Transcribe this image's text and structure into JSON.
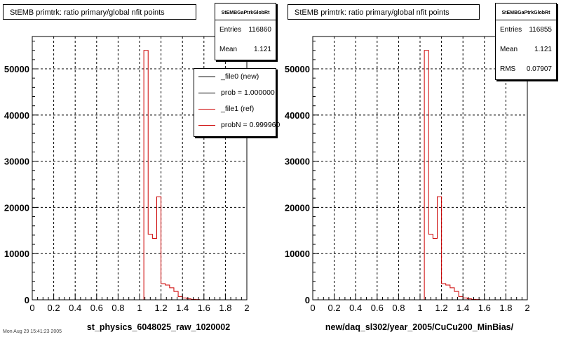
{
  "panels": [
    {
      "title": "StEMB primtrk: ratio primary/global nfit points",
      "stats": {
        "name": "StEMBGaPtrkGlobRt",
        "rows": [
          {
            "label": "Entries",
            "value": "116860"
          },
          {
            "label": "Mean",
            "value": "1.121"
          }
        ]
      },
      "legend": [
        {
          "label": "_file0 (new)",
          "color": "#000000"
        },
        {
          "label": "prob = 1.000000",
          "color": "#000000"
        },
        {
          "label": "_file1 (ref)",
          "color": "#cc0000"
        },
        {
          "label": "probN = 0.999960",
          "color": "#cc0000"
        }
      ]
    },
    {
      "title": "StEMB primtrk: ratio primary/global nfit points",
      "stats": {
        "name": "StEMBGaPtrkGlobRt",
        "rows": [
          {
            "label": "Entries",
            "value": "116855"
          },
          {
            "label": "Mean",
            "value": "1.121"
          },
          {
            "label": "RMS",
            "value": "0.07907"
          }
        ]
      }
    }
  ],
  "footer_stamp": "Mon Aug 29 15:41:23 2005",
  "chart_data": [
    {
      "type": "bar",
      "style": "step histogram",
      "xlabel": "st_physics_6048025_raw_1020002",
      "ylabel": "",
      "xlim": [
        0,
        2
      ],
      "ylim": [
        0,
        57000
      ],
      "xticks": [
        "0",
        "0.2",
        "0.4",
        "0.6",
        "0.8",
        "1",
        "1.2",
        "1.4",
        "1.6",
        "1.8",
        "2"
      ],
      "yticks": [
        "0",
        "10000",
        "20000",
        "30000",
        "40000",
        "50000"
      ],
      "grid": true,
      "bin_edges": [
        0,
        1.0,
        1.04,
        1.08,
        1.12,
        1.16,
        1.2,
        1.24,
        1.28,
        1.32,
        1.36,
        1.4,
        1.44,
        1.48,
        1.52,
        1.56,
        2.0
      ],
      "series": [
        {
          "color": "#cc0000",
          "values": [
            0,
            0,
            54000,
            14200,
            13300,
            22300,
            3500,
            3200,
            2600,
            1800,
            700,
            400,
            200,
            100,
            50,
            0
          ]
        }
      ]
    },
    {
      "type": "bar",
      "style": "step histogram",
      "xlabel": "new/daq_sl302/year_2005/CuCu200_MinBias/",
      "ylabel": "",
      "xlim": [
        0,
        2
      ],
      "ylim": [
        0,
        57000
      ],
      "xticks": [
        "0",
        "0.2",
        "0.4",
        "0.6",
        "0.8",
        "1",
        "1.2",
        "1.4",
        "1.6",
        "1.8",
        "2"
      ],
      "yticks": [
        "0",
        "10000",
        "20000",
        "30000",
        "40000",
        "50000"
      ],
      "grid": true,
      "bin_edges": [
        0,
        1.0,
        1.04,
        1.08,
        1.12,
        1.16,
        1.2,
        1.24,
        1.28,
        1.32,
        1.36,
        1.4,
        1.44,
        1.48,
        1.52,
        1.56,
        2.0
      ],
      "series": [
        {
          "color": "#cc0000",
          "values": [
            0,
            0,
            54000,
            14200,
            13300,
            22300,
            3500,
            3200,
            2600,
            1800,
            700,
            400,
            200,
            100,
            50,
            0
          ]
        }
      ]
    }
  ]
}
